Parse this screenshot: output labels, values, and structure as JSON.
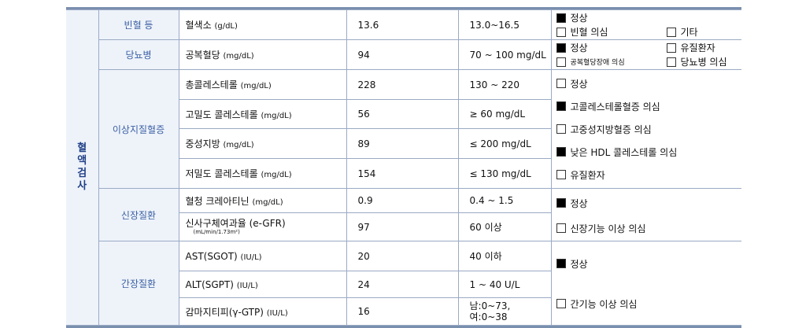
{
  "section_title": [
    "혈",
    "액",
    "검",
    "사"
  ],
  "rows": {
    "anemia": {
      "category": "빈혈 등",
      "item": "혈색소",
      "unit": "(g/dL)",
      "value": "13.6",
      "range": "13.0~16.5"
    },
    "diabetes": {
      "category": "당뇨병",
      "item": "공복혈당",
      "unit": "(mg/dL)",
      "value": "94",
      "range": "70 ~ 100 mg/dL"
    },
    "dyslipidemia": {
      "category": "이상지질혈증",
      "items": [
        {
          "item": "총콜레스테롤",
          "unit": "(mg/dL)",
          "value": "228",
          "range": "130 ~ 220"
        },
        {
          "item": "고밀도 콜레스테롤",
          "unit": "(mg/dL)",
          "value": "56",
          "range": "≥ 60 mg/dL"
        },
        {
          "item": "중성지방",
          "unit": "(mg/dL)",
          "value": "89",
          "range": "≤ 200 mg/dL"
        },
        {
          "item": "저밀도 콜레스테롤",
          "unit": "(mg/dL)",
          "value": "154",
          "range": "≤ 130 mg/dL"
        }
      ]
    },
    "kidney": {
      "category": "신장질환",
      "items": [
        {
          "item": "혈청 크레아티닌",
          "unit": "(mg/dL)",
          "value": "0.9",
          "range": "0.4 ~ 1.5"
        },
        {
          "item": "신사구체여과율 (e-GFR)",
          "subunit": "(mL/min/1.73m²)",
          "value": "97",
          "range": "60 이상"
        }
      ]
    },
    "liver": {
      "category": "간장질환",
      "items": [
        {
          "item": "AST(SGOT)",
          "unit": "(IU/L)",
          "value": "20",
          "range": "40 이하"
        },
        {
          "item": "ALT(SGPT)",
          "unit": "(IU/L)",
          "value": "24",
          "range": "1 ~ 40 U/L"
        },
        {
          "item": "감마지티피(γ-GTP)",
          "unit": "(IU/L)",
          "value": "16",
          "range_lines": [
            "남:0~73,",
            "여:0~38"
          ]
        }
      ]
    }
  },
  "results": {
    "anemia": [
      {
        "label": "정상",
        "checked": true
      },
      {
        "label": "빈혈 의심",
        "checked": false
      },
      {
        "label": "기타",
        "checked": false
      }
    ],
    "diabetes": [
      {
        "label": "정상",
        "checked": true
      },
      {
        "label": "유질환자",
        "checked": false
      },
      {
        "label": "공복혈당장애 의심",
        "checked": false
      },
      {
        "label": "당뇨병 의심",
        "checked": false
      }
    ],
    "dyslipidemia": [
      {
        "label": "정상",
        "checked": false
      },
      {
        "label": "고콜레스테롤혈증 의심",
        "checked": true
      },
      {
        "label": "고중성지방혈증 의심",
        "checked": false
      },
      {
        "label": "낮은 HDL 콜레스테롤 의심",
        "checked": true
      },
      {
        "label": "유질환자",
        "checked": false
      }
    ],
    "kidney": [
      {
        "label": "정상",
        "checked": true
      },
      {
        "label": "신장기능 이상 의심",
        "checked": false
      }
    ],
    "liver": [
      {
        "label": "정상",
        "checked": true
      },
      {
        "label": "간기능 이상 의심",
        "checked": false
      }
    ]
  }
}
